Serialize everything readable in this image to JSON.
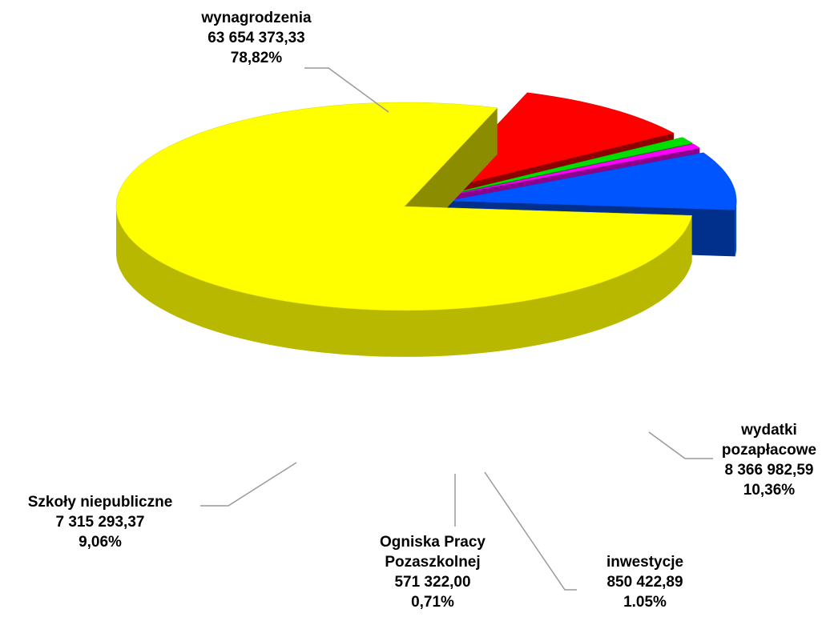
{
  "chart_data": {
    "type": "pie3d",
    "categories": [
      "wynagrodzenia",
      "wydatki pozapłacowe",
      "inwestycje",
      "Ogniska Pracy Pozaszkolnej",
      "Szkoły niepubliczne"
    ],
    "values": [
      78.82,
      10.36,
      1.05,
      0.71,
      9.06
    ],
    "value_labels": [
      "78,82%",
      "10,36%",
      "1.05%",
      "0,71%",
      "9,06%"
    ],
    "amounts": [
      63654373.33,
      8366982.59,
      850422.89,
      571322.0,
      7315293.37
    ],
    "amount_labels": [
      "63 654 373,33",
      "8 366 982,59",
      "850 422,89",
      "571 322,00",
      "7 315 293,37"
    ],
    "colors": [
      "#ffff00",
      "#ff0000",
      "#00e000",
      "#ff00ff",
      "#0055ff"
    ]
  }
}
